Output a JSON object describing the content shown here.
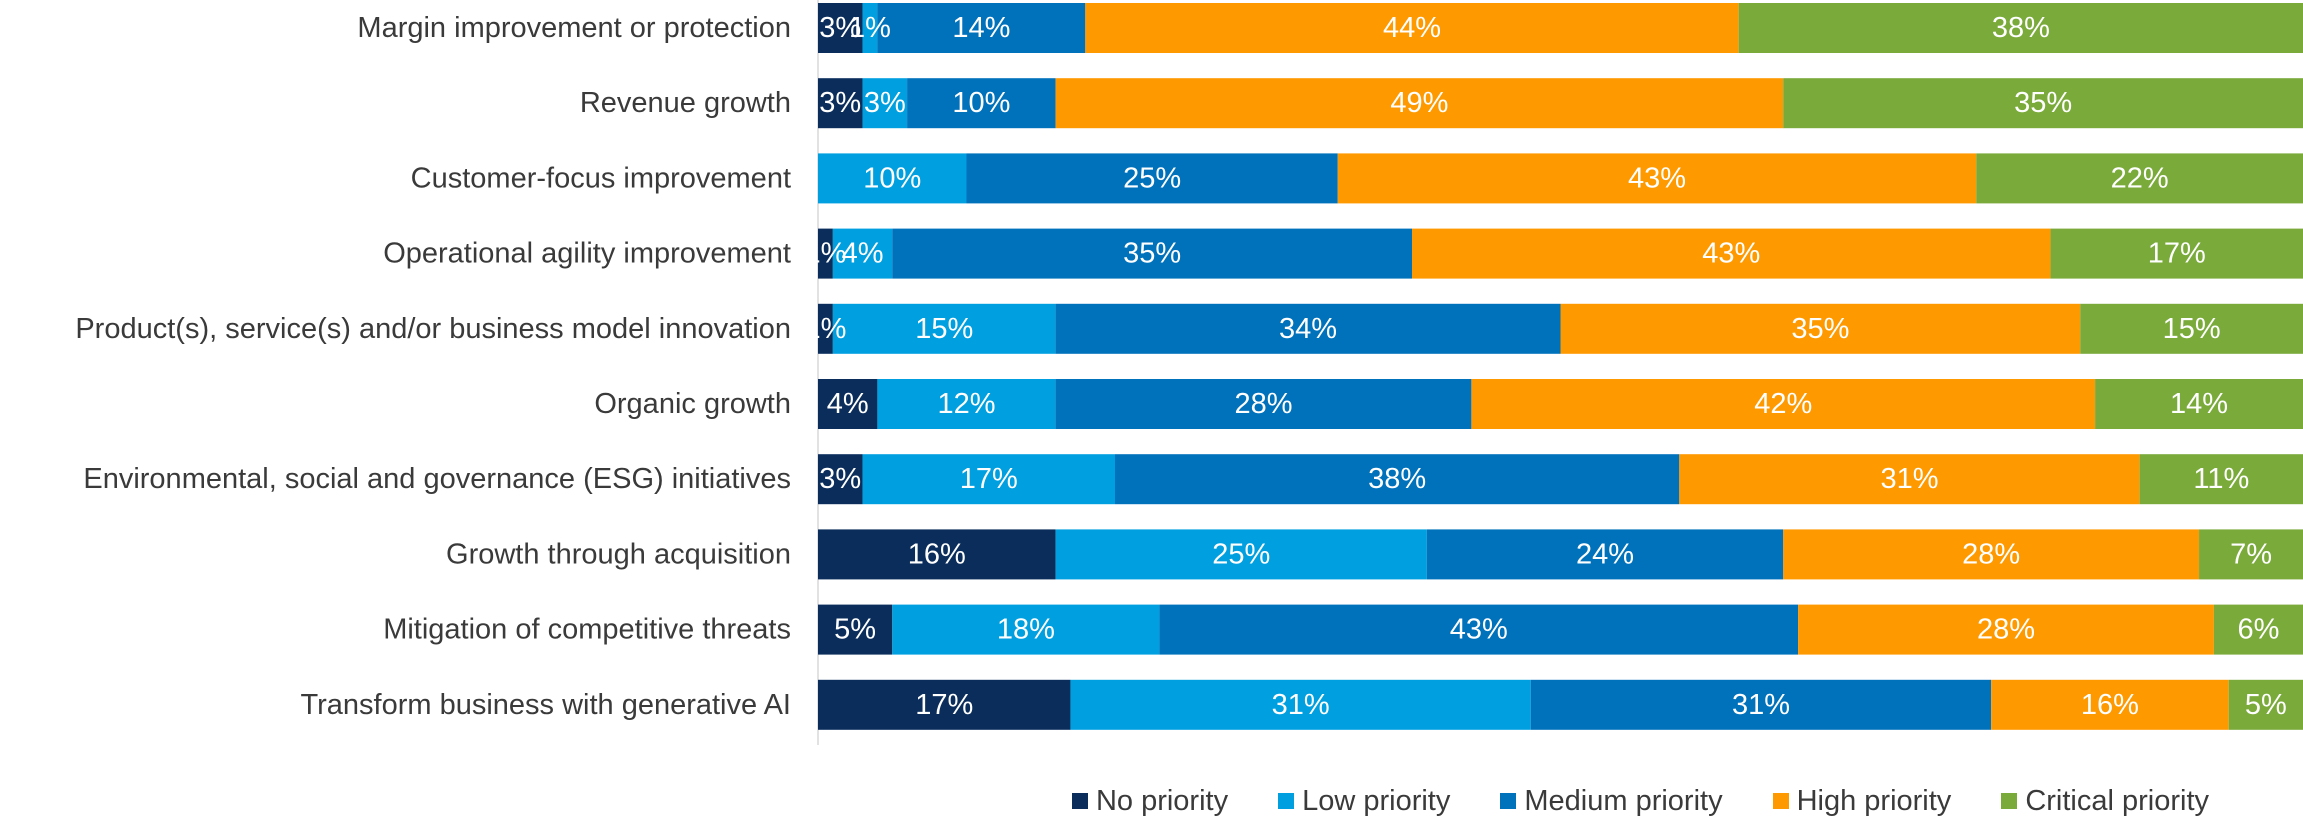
{
  "chart_data": {
    "type": "bar",
    "orientation": "horizontal",
    "stacked": true,
    "percent_stacked": true,
    "grid": false,
    "legend_position": "bottom",
    "xlim": [
      0,
      100
    ],
    "categories": [
      "Margin improvement or protection",
      "Revenue growth",
      "Customer-focus improvement",
      "Operational agility improvement",
      "Product(s), service(s) and/or business model innovation",
      "Organic growth",
      "Environmental, social and governance (ESG) initiatives",
      "Growth through acquisition",
      "Mitigation of competitive threats",
      "Transform business with generative AI"
    ],
    "series": [
      {
        "name": "No priority",
        "color": "#0b2d5b",
        "label_color": "#ffffff",
        "values": [
          3,
          3,
          0,
          1,
          1,
          4,
          3,
          16,
          5,
          17
        ]
      },
      {
        "name": "Low priority",
        "color": "#009fdf",
        "label_color": "#ffffff",
        "values": [
          1,
          3,
          10,
          4,
          15,
          12,
          17,
          25,
          18,
          31
        ]
      },
      {
        "name": "Medium priority",
        "color": "#0071bb",
        "label_color": "#ffffff",
        "values": [
          14,
          10,
          25,
          35,
          34,
          28,
          38,
          24,
          43,
          31
        ]
      },
      {
        "name": "High priority",
        "color": "#ff9900",
        "label_color": "#ffffff",
        "values": [
          44,
          49,
          43,
          43,
          35,
          42,
          31,
          28,
          28,
          16
        ]
      },
      {
        "name": "Critical priority",
        "color": "#7aaa3a",
        "label_color": "#ffffff",
        "values": [
          38,
          35,
          22,
          17,
          15,
          14,
          11,
          7,
          6,
          5
        ]
      }
    ],
    "value_suffix": "%"
  }
}
